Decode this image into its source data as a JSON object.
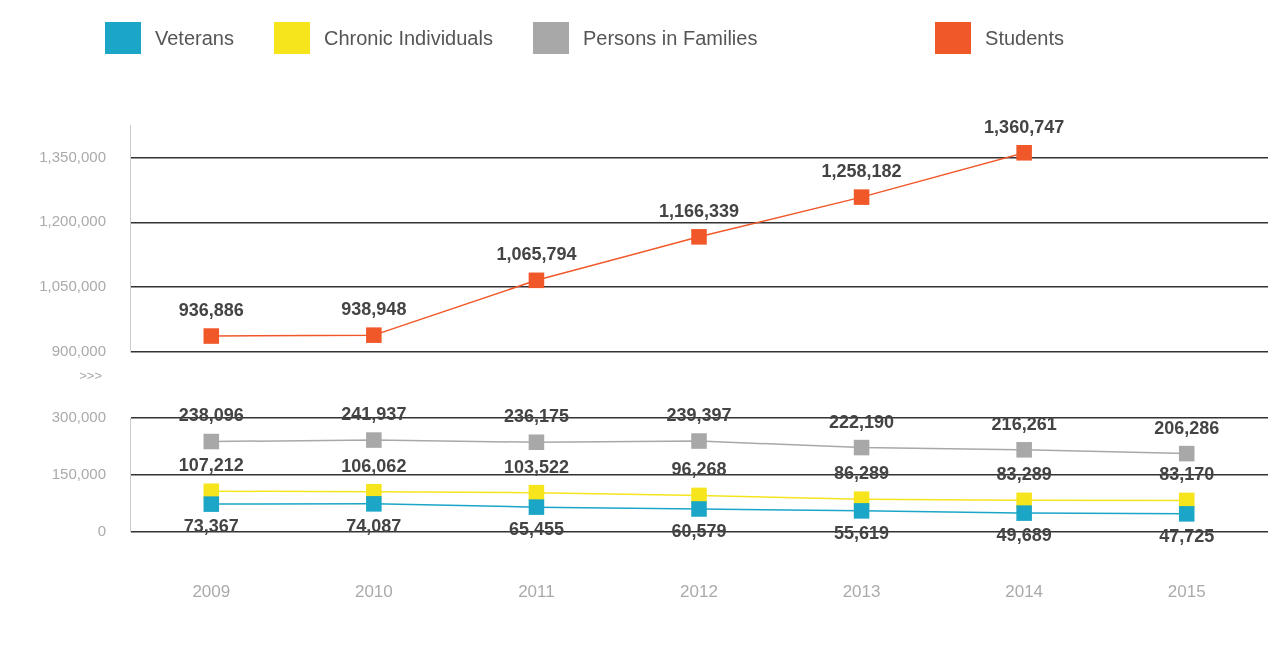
{
  "chart_data": [
    {
      "type": "line",
      "categories": [
        "2009",
        "2010",
        "2011",
        "2012",
        "2013",
        "2014",
        "2015"
      ],
      "series": [
        {
          "name": "Students",
          "color": "#f0582a",
          "values": [
            936886,
            938948,
            1065794,
            1166339,
            1258182,
            1360747,
            null
          ],
          "value_labels": [
            "936,886",
            "938,948",
            "1,065,794",
            "1,166,339",
            "1,258,182",
            "1,360,747",
            null
          ]
        }
      ],
      "ylim": [
        900000,
        1425000
      ],
      "yticks": [
        {
          "value": 900000,
          "label": "900,000"
        },
        {
          "value": 1050000,
          "label": "1,050,000"
        },
        {
          "value": 1200000,
          "label": "1,200,000"
        },
        {
          "value": 1350000,
          "label": "1,350,000"
        }
      ],
      "grid": "y",
      "legend": "top right",
      "tick_labels": "y",
      "marker": "square",
      "annotations": [
        ">>>"
      ]
    },
    {
      "type": "line",
      "categories": [
        "2009",
        "2010",
        "2011",
        "2012",
        "2013",
        "2014",
        "2015"
      ],
      "series": [
        {
          "name": "Veterans",
          "color": "#1ba6c8",
          "values": [
            73367,
            74087,
            65455,
            60579,
            55619,
            49689,
            47725
          ],
          "value_labels": [
            "73,367",
            "74,087",
            "65,455",
            "60,579",
            "55,619",
            "49,689",
            "47,725"
          ]
        },
        {
          "name": "Chronic Individuals",
          "color": "#f6e41c",
          "values": [
            107212,
            106062,
            103522,
            96268,
            86289,
            83289,
            83170
          ],
          "value_labels": [
            "107,212",
            "106,062",
            "103,522",
            "96,268",
            "86,289",
            "83,289",
            "83,170"
          ]
        },
        {
          "name": "Persons in Families",
          "color": "#a8a8a8",
          "values": [
            238096,
            241937,
            236175,
            239397,
            222190,
            216261,
            206286
          ],
          "value_labels": [
            "238,096",
            "241,937",
            "236,175",
            "239,397",
            "222,190",
            "216,261",
            "206,286"
          ]
        }
      ],
      "ylim": [
        0,
        300000
      ],
      "yticks": [
        {
          "value": 0,
          "label": "0"
        },
        {
          "value": 150000,
          "label": "150,000"
        },
        {
          "value": 300000,
          "label": "300,000"
        }
      ],
      "grid": "y",
      "legend": "top left",
      "marker": "square"
    }
  ]
}
